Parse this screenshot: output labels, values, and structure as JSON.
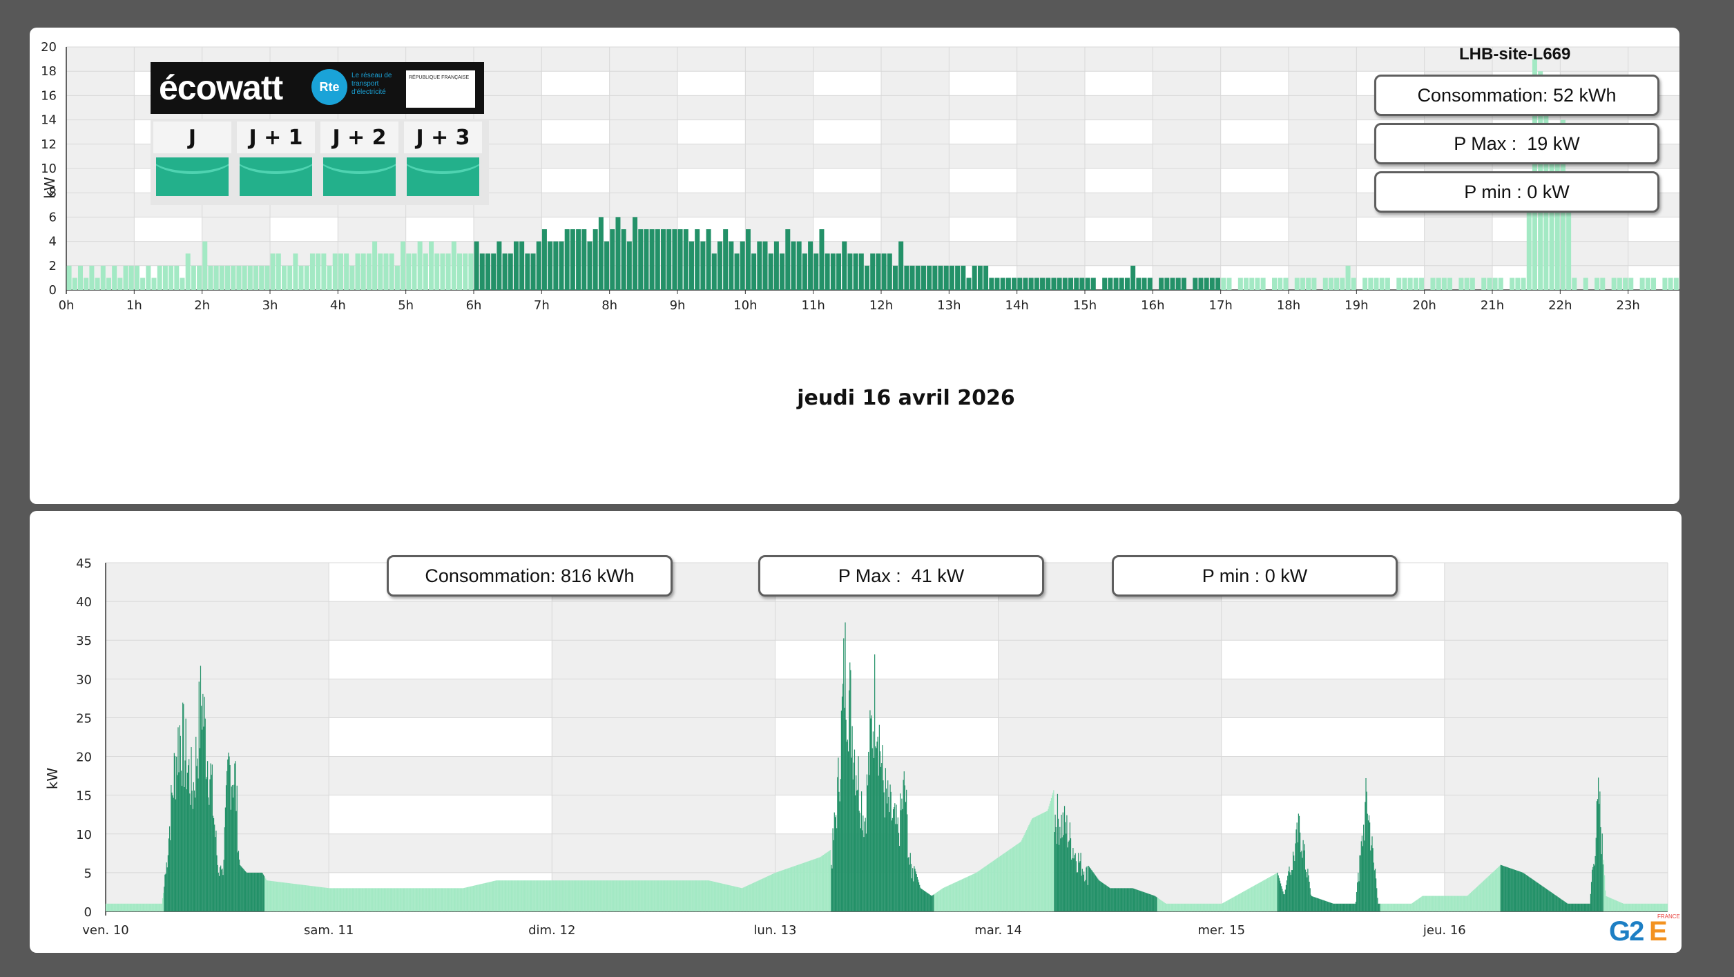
{
  "top_chart": {
    "site_name": "LHB-site-L669",
    "consumption": "Consommation: 52 kWh",
    "pmax": "P Max :  19 kW",
    "pmin": "P min : 0 kW",
    "date_label": "jeudi 16 avril 2026"
  },
  "bottom_chart": {
    "consumption": "Consommation: 816 kWh",
    "pmax": "P Max :  41 kW",
    "pmin": "P min : 0 kW"
  },
  "ecowatt": {
    "brand": "écowatt",
    "rte": "Rte",
    "rte_text": "Le réseau de transport d'électricité",
    "gov_text": "RÉPUBLIQUE FRANÇAISE",
    "days": [
      "J",
      "J + 1",
      "J + 2",
      "J + 3"
    ],
    "signal_color": "#23b08b"
  },
  "logo": {
    "g2": "G2",
    "e": "E",
    "france": "FRANCE"
  },
  "colors": {
    "light_bar": "#a3e9c4",
    "dark_bar": "#239168",
    "grid_band": "#efefef"
  },
  "chart_data": [
    {
      "type": "bar",
      "title": "jeudi 16 avril 2026",
      "ylabel": "kW",
      "ylim": [
        0,
        20
      ],
      "yticks": [
        0,
        2,
        4,
        6,
        8,
        10,
        12,
        14,
        16,
        18,
        20
      ],
      "xlabels": [
        "0h",
        "1h",
        "2h",
        "3h",
        "4h",
        "5h",
        "6h",
        "7h",
        "8h",
        "9h",
        "10h",
        "11h",
        "12h",
        "13h",
        "14h",
        "15h",
        "16h",
        "17h",
        "18h",
        "19h",
        "20h",
        "21h",
        "22h",
        "23h",
        "0h"
      ],
      "interval_minutes": 5,
      "series": [
        {
          "values": [
            2,
            1,
            2,
            1,
            2,
            1,
            2,
            1,
            2,
            1,
            2,
            2,
            2,
            1,
            2,
            1,
            2,
            2,
            2,
            2,
            1,
            3,
            2,
            2,
            4,
            2,
            2,
            2,
            2,
            2,
            2,
            2,
            2,
            2,
            2,
            2,
            3,
            3,
            2,
            2,
            3,
            2,
            2,
            3,
            3,
            3,
            2,
            3,
            3,
            3,
            2,
            3,
            3,
            3,
            4,
            3,
            3,
            3,
            2,
            4,
            3,
            3,
            4,
            3,
            4,
            3,
            3,
            3,
            4,
            3,
            3,
            3,
            4,
            3,
            3,
            3,
            4,
            3,
            3,
            4,
            4,
            3,
            3,
            4,
            5,
            4,
            4,
            4,
            5,
            5,
            5,
            5,
            4,
            5,
            6,
            4,
            5,
            6,
            5,
            4,
            6,
            5,
            5,
            5,
            5,
            5,
            5,
            5,
            5,
            5,
            4,
            5,
            4,
            5,
            3,
            4,
            5,
            4,
            3,
            4,
            5,
            3,
            4,
            4,
            3,
            4,
            3,
            5,
            4,
            4,
            3,
            4,
            3,
            5,
            3,
            3,
            3,
            4,
            3,
            3,
            3,
            2,
            3,
            3,
            3,
            3,
            2,
            4,
            2,
            2,
            2,
            2,
            2,
            2,
            2,
            2,
            2,
            2,
            2,
            1,
            2,
            2,
            2,
            1,
            1,
            1,
            1,
            1,
            1,
            1,
            1,
            1,
            1,
            1,
            1,
            1,
            1,
            1,
            1,
            1,
            1,
            1,
            0,
            1,
            1,
            1,
            1,
            1,
            2,
            1,
            1,
            1,
            0,
            1,
            1,
            1,
            1,
            1,
            0,
            1,
            1,
            1,
            1,
            1,
            1,
            1,
            0,
            1,
            1,
            1,
            1,
            1,
            0,
            1,
            1,
            1,
            0,
            1,
            1,
            1,
            1,
            0,
            1,
            1,
            1,
            1,
            2,
            1,
            0,
            1,
            1,
            1,
            1,
            1,
            0,
            1,
            1,
            1,
            1,
            1,
            0,
            1,
            1,
            1,
            1,
            0,
            1,
            1,
            1,
            0,
            1,
            1,
            1,
            1,
            0,
            1,
            1,
            1,
            7,
            19,
            18,
            16,
            12,
            12,
            14,
            8,
            1,
            0,
            1,
            0,
            1,
            1,
            0,
            1,
            1,
            1,
            1,
            0,
            1,
            1,
            1,
            0,
            1,
            1,
            1,
            1,
            0,
            1,
            1,
            1,
            1,
            0,
            1,
            1,
            1,
            1,
            0,
            1,
            1,
            1,
            1,
            0,
            1,
            1,
            1,
            2,
            1,
            1,
            1,
            1,
            0,
            1,
            1,
            1,
            1,
            1,
            1,
            1,
            1,
            1,
            1,
            1,
            1,
            1,
            1,
            1,
            1,
            1,
            1,
            1,
            1,
            1,
            1,
            1,
            1,
            1,
            1,
            0,
            1,
            1,
            1,
            1,
            1,
            1,
            1,
            2,
            1,
            1,
            1,
            1,
            1,
            1,
            1,
            1,
            1,
            1,
            1,
            1,
            1,
            1,
            1,
            0,
            1,
            1,
            1,
            1,
            1,
            1,
            1,
            0,
            1,
            1,
            1,
            1,
            1,
            0,
            1,
            0,
            0,
            0,
            0,
            0
          ]
        }
      ]
    },
    {
      "type": "bar",
      "ylabel": "kW",
      "ylim": [
        0,
        45
      ],
      "yticks": [
        0,
        5,
        10,
        15,
        20,
        25,
        30,
        35,
        40,
        45
      ],
      "xlabels": [
        "ven. 10",
        "sam. 11",
        "dim. 12",
        "lun. 13",
        "mar. 14",
        "mer. 15",
        "jeu. 16"
      ],
      "x_range_days": [
        0,
        7
      ],
      "series": [
        {
          "name": "",
          "points": [
            [
              0.0,
              1
            ],
            [
              0.25,
              1
            ],
            [
              0.26,
              3
            ],
            [
              0.3,
              21
            ],
            [
              0.33,
              30
            ],
            [
              0.36,
              25
            ],
            [
              0.39,
              20
            ],
            [
              0.41,
              28
            ],
            [
              0.43,
              36
            ],
            [
              0.45,
              27
            ],
            [
              0.47,
              22
            ],
            [
              0.5,
              8
            ],
            [
              0.52,
              5
            ],
            [
              0.55,
              24
            ],
            [
              0.58,
              22
            ],
            [
              0.6,
              6
            ],
            [
              0.63,
              5
            ],
            [
              0.7,
              5
            ],
            [
              0.72,
              4
            ],
            [
              1.0,
              3
            ],
            [
              1.3,
              3
            ],
            [
              1.6,
              3
            ],
            [
              1.75,
              4
            ],
            [
              2.0,
              4
            ],
            [
              2.3,
              4
            ],
            [
              2.5,
              4
            ],
            [
              2.7,
              4
            ],
            [
              2.85,
              3
            ],
            [
              3.0,
              5
            ],
            [
              3.1,
              6
            ],
            [
              3.2,
              7
            ],
            [
              3.25,
              8
            ],
            [
              3.26,
              12
            ],
            [
              3.28,
              20
            ],
            [
              3.3,
              33
            ],
            [
              3.31,
              41
            ],
            [
              3.33,
              36
            ],
            [
              3.36,
              25
            ],
            [
              3.4,
              15
            ],
            [
              3.43,
              30
            ],
            [
              3.45,
              37
            ],
            [
              3.48,
              22
            ],
            [
              3.5,
              18
            ],
            [
              3.55,
              13
            ],
            [
              3.58,
              21
            ],
            [
              3.6,
              8
            ],
            [
              3.65,
              3
            ],
            [
              3.7,
              2
            ],
            [
              3.75,
              3
            ],
            [
              3.9,
              5
            ],
            [
              4.0,
              7
            ],
            [
              4.1,
              9
            ],
            [
              4.15,
              12
            ],
            [
              4.22,
              13
            ],
            [
              4.25,
              16
            ],
            [
              4.3,
              14
            ],
            [
              4.35,
              9
            ],
            [
              4.4,
              6
            ],
            [
              4.45,
              4
            ],
            [
              4.5,
              3
            ],
            [
              4.6,
              3
            ],
            [
              4.7,
              2
            ],
            [
              4.75,
              1
            ],
            [
              5.0,
              1
            ],
            [
              5.25,
              5
            ],
            [
              5.28,
              2
            ],
            [
              5.35,
              14
            ],
            [
              5.4,
              2
            ],
            [
              5.5,
              1
            ],
            [
              5.6,
              1
            ],
            [
              5.65,
              19
            ],
            [
              5.7,
              1
            ],
            [
              5.85,
              1
            ],
            [
              5.9,
              2
            ],
            [
              6.0,
              2
            ],
            [
              6.1,
              2
            ],
            [
              6.25,
              6
            ],
            [
              6.35,
              5
            ],
            [
              6.45,
              3
            ],
            [
              6.55,
              1
            ],
            [
              6.65,
              1
            ],
            [
              6.69,
              19
            ],
            [
              6.72,
              2
            ],
            [
              6.8,
              1
            ],
            [
              7.0,
              1
            ]
          ]
        }
      ]
    }
  ]
}
